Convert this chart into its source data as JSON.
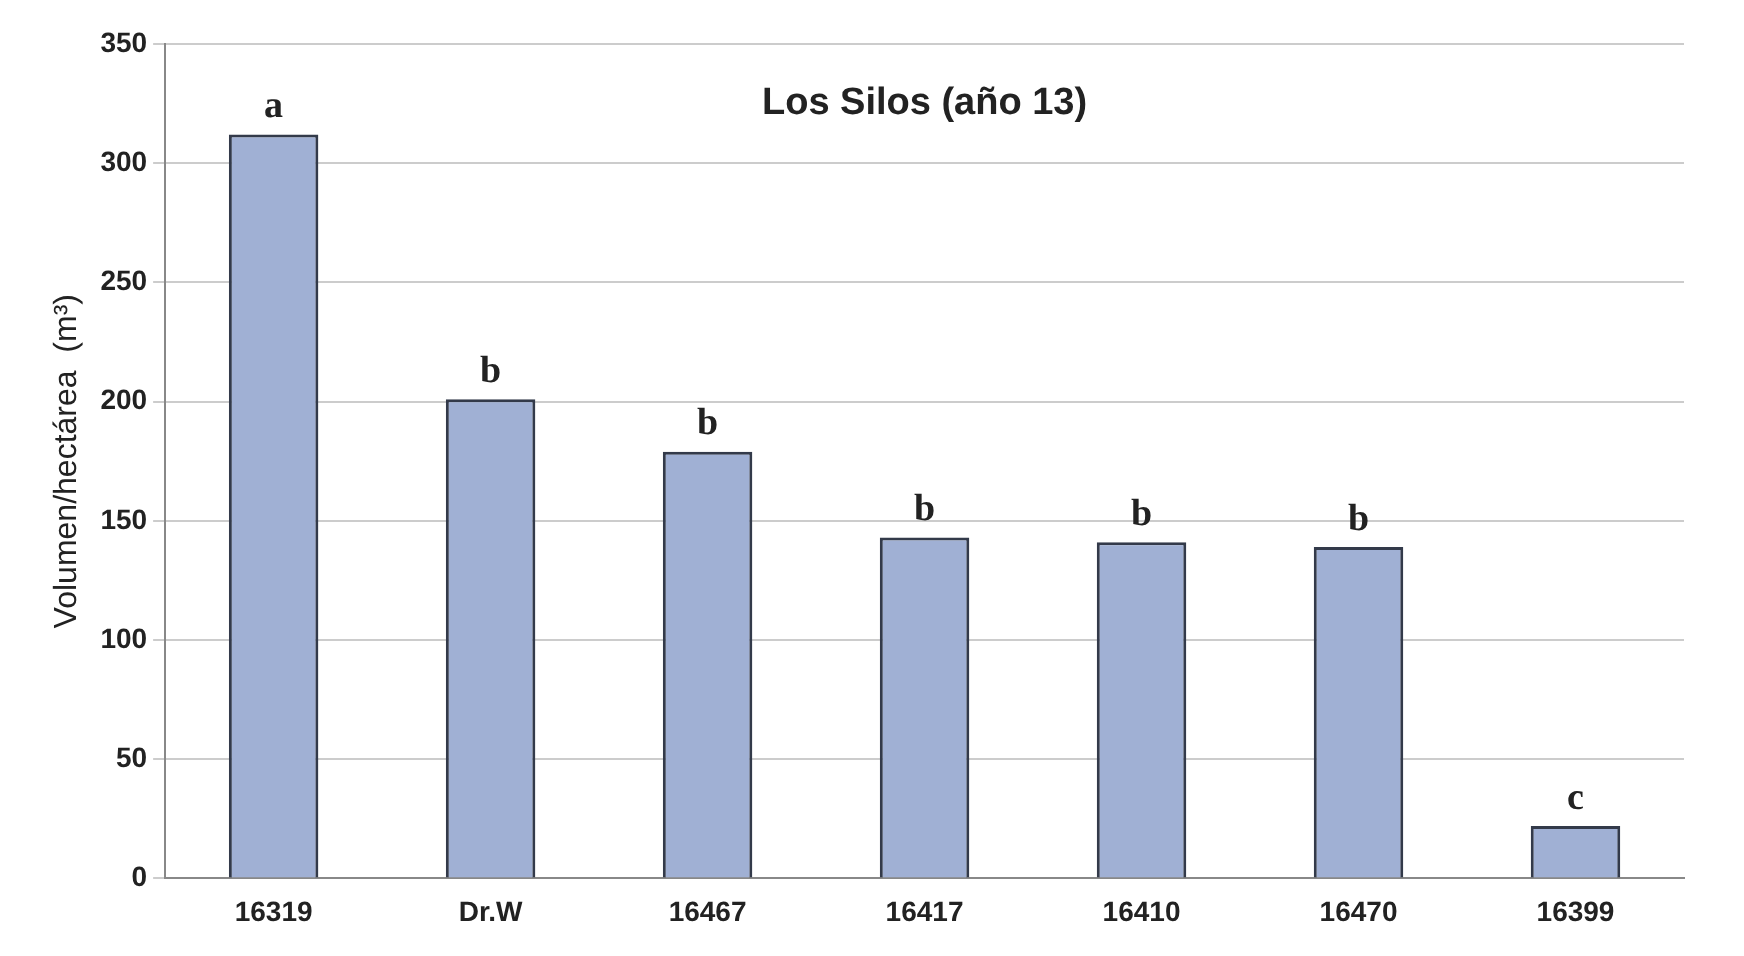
{
  "chart_data": {
    "type": "bar",
    "title": "Los Silos (año 13)",
    "ylabel": "Volumen/hectárea  (m³)",
    "categories": [
      "16319",
      "Dr.W",
      "16467",
      "16417",
      "16410",
      "16470",
      "16399"
    ],
    "values": [
      312,
      201,
      179,
      143,
      141,
      139,
      22
    ],
    "color": "#a0b0d4",
    "ylim": [
      0,
      350
    ],
    "yticks": [
      0,
      50,
      100,
      150,
      200,
      250,
      300,
      350
    ],
    "grid": "y",
    "annotations": [
      {
        "text": "a",
        "x": "16319",
        "y": 312
      },
      {
        "text": "b",
        "x": "Dr.W",
        "y": 201
      },
      {
        "text": "b",
        "x": "16467",
        "y": 179
      },
      {
        "text": "b",
        "x": "16417",
        "y": 143
      },
      {
        "text": "b",
        "x": "16410",
        "y": 141
      },
      {
        "text": "b",
        "x": "16470",
        "y": 139
      },
      {
        "text": "c",
        "x": "16399",
        "y": 22
      }
    ]
  }
}
